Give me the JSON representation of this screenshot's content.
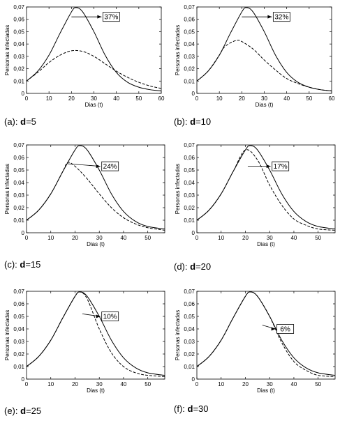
{
  "chart_data": [
    {
      "type": "line",
      "panel": "a",
      "caption_prefix": "(a): ",
      "caption_param": "d",
      "caption_value": "=5",
      "xlabel": "Dias (t)",
      "ylabel": "Personas infectadas",
      "xlim": [
        0,
        60
      ],
      "ylim": [
        0,
        0.07
      ],
      "xticks": [
        "0",
        "10",
        "20",
        "30",
        "40",
        "50",
        "60"
      ],
      "yticks": [
        "0",
        "0,01",
        "0,02",
        "0,03",
        "0,04",
        "0,05",
        "0,06",
        "0,07"
      ],
      "annotation": "37%",
      "series": [
        {
          "style": "solid",
          "x": [
            0,
            5,
            10,
            15,
            20,
            22,
            25,
            30,
            35,
            40,
            45,
            50,
            55,
            60
          ],
          "y": [
            0.01,
            0.018,
            0.031,
            0.049,
            0.066,
            0.0695,
            0.066,
            0.05,
            0.031,
            0.017,
            0.009,
            0.005,
            0.003,
            0.002
          ]
        },
        {
          "style": "dashed",
          "x": [
            0,
            5,
            10,
            15,
            20,
            25,
            30,
            35,
            40,
            45,
            50,
            55,
            60
          ],
          "y": [
            0.01,
            0.017,
            0.025,
            0.031,
            0.0345,
            0.034,
            0.03,
            0.024,
            0.018,
            0.013,
            0.009,
            0.006,
            0.004
          ]
        }
      ]
    },
    {
      "type": "line",
      "panel": "b",
      "caption_prefix": "(b): ",
      "caption_param": "d",
      "caption_value": "=10",
      "xlabel": "Dias (t)",
      "ylabel": "Personas infectadas",
      "xlim": [
        0,
        60
      ],
      "ylim": [
        0,
        0.07
      ],
      "xticks": [
        "0",
        "10",
        "20",
        "30",
        "40",
        "50",
        "60"
      ],
      "yticks": [
        "0",
        "0,01",
        "0,02",
        "0,03",
        "0,04",
        "0,05",
        "0,06",
        "0,07"
      ],
      "annotation": "32%",
      "series": [
        {
          "style": "solid",
          "x": [
            0,
            5,
            10,
            15,
            20,
            22,
            25,
            30,
            35,
            40,
            45,
            50,
            55,
            60
          ],
          "y": [
            0.01,
            0.018,
            0.031,
            0.049,
            0.066,
            0.0695,
            0.066,
            0.05,
            0.031,
            0.017,
            0.009,
            0.005,
            0.003,
            0.002
          ]
        },
        {
          "style": "dashed",
          "x": [
            0,
            5,
            10,
            12,
            15,
            18,
            20,
            25,
            30,
            35,
            40,
            45,
            50,
            55,
            60
          ],
          "y": [
            0.01,
            0.018,
            0.031,
            0.037,
            0.041,
            0.043,
            0.042,
            0.036,
            0.027,
            0.019,
            0.012,
            0.008,
            0.005,
            0.003,
            0.002
          ]
        }
      ]
    },
    {
      "type": "line",
      "panel": "c",
      "caption_prefix": "(c): ",
      "caption_param": "d",
      "caption_value": "=15",
      "xlabel": "Dias (t)",
      "ylabel": "Personas infectadas",
      "xlim": [
        0,
        57
      ],
      "ylim": [
        0,
        0.07
      ],
      "xticks": [
        "0",
        "10",
        "20",
        "30",
        "40",
        "50"
      ],
      "yticks": [
        "0",
        "0,01",
        "0,02",
        "0,03",
        "0,04",
        "0,05",
        "0,06",
        "0,07"
      ],
      "annotation": "24%",
      "series": [
        {
          "style": "solid",
          "x": [
            0,
            5,
            10,
            15,
            20,
            22,
            25,
            30,
            35,
            40,
            45,
            50,
            57
          ],
          "y": [
            0.01,
            0.018,
            0.031,
            0.049,
            0.066,
            0.0695,
            0.066,
            0.05,
            0.031,
            0.017,
            0.009,
            0.005,
            0.003
          ]
        },
        {
          "style": "dashed",
          "x": [
            0,
            5,
            10,
            15,
            17,
            20,
            25,
            30,
            35,
            40,
            45,
            50,
            57
          ],
          "y": [
            0.01,
            0.018,
            0.031,
            0.049,
            0.056,
            0.053,
            0.043,
            0.031,
            0.02,
            0.012,
            0.007,
            0.004,
            0.002
          ]
        }
      ]
    },
    {
      "type": "line",
      "panel": "d",
      "caption_prefix": "(d): ",
      "caption_param": "d",
      "caption_value": "=20",
      "xlabel": "Dias (t)",
      "ylabel": "Personas infectadas",
      "xlim": [
        0,
        57
      ],
      "ylim": [
        0,
        0.07
      ],
      "xticks": [
        "0",
        "10",
        "20",
        "30",
        "40",
        "50"
      ],
      "yticks": [
        "0",
        "0,01",
        "0,02",
        "0,03",
        "0,04",
        "0,05",
        "0,06",
        "0,07"
      ],
      "annotation": "17%",
      "series": [
        {
          "style": "solid",
          "x": [
            0,
            5,
            10,
            15,
            20,
            22,
            25,
            30,
            35,
            40,
            45,
            50,
            57
          ],
          "y": [
            0.01,
            0.018,
            0.031,
            0.049,
            0.066,
            0.0695,
            0.066,
            0.05,
            0.031,
            0.017,
            0.009,
            0.005,
            0.003
          ]
        },
        {
          "style": "dashed",
          "x": [
            0,
            5,
            10,
            15,
            20,
            25,
            30,
            35,
            40,
            45,
            50,
            57
          ],
          "y": [
            0.01,
            0.018,
            0.031,
            0.049,
            0.066,
            0.058,
            0.038,
            0.022,
            0.011,
            0.006,
            0.003,
            0.002
          ]
        }
      ]
    },
    {
      "type": "line",
      "panel": "e",
      "caption_prefix": "(e): ",
      "caption_param": "d",
      "caption_value": "=25",
      "xlabel": "Dias (t)",
      "ylabel": "Personas infectadas",
      "xlim": [
        0,
        57
      ],
      "ylim": [
        0,
        0.07
      ],
      "xticks": [
        "0",
        "10",
        "20",
        "30",
        "40",
        "50"
      ],
      "yticks": [
        "0",
        "0,01",
        "0,02",
        "0,03",
        "0,04",
        "0,05",
        "0,06",
        "0,07"
      ],
      "annotation": "10%",
      "series": [
        {
          "style": "solid",
          "x": [
            0,
            5,
            10,
            15,
            20,
            22,
            25,
            30,
            35,
            40,
            45,
            50,
            57
          ],
          "y": [
            0.01,
            0.018,
            0.031,
            0.049,
            0.066,
            0.0695,
            0.066,
            0.05,
            0.031,
            0.017,
            0.009,
            0.005,
            0.003
          ]
        },
        {
          "style": "dashed",
          "x": [
            0,
            5,
            10,
            15,
            20,
            22,
            25,
            30,
            35,
            40,
            45,
            50,
            57
          ],
          "y": [
            0.01,
            0.018,
            0.031,
            0.049,
            0.066,
            0.0695,
            0.064,
            0.04,
            0.021,
            0.01,
            0.005,
            0.003,
            0.002
          ]
        }
      ]
    },
    {
      "type": "line",
      "panel": "f",
      "caption_prefix": "(f): ",
      "caption_param": "d",
      "caption_value": "=30",
      "xlabel": "Dias (t)",
      "ylabel": "Personas infectadas",
      "xlim": [
        0,
        57
      ],
      "ylim": [
        0,
        0.07
      ],
      "xticks": [
        "0",
        "10",
        "20",
        "30",
        "40",
        "50"
      ],
      "yticks": [
        "0",
        "0,01",
        "0,02",
        "0,03",
        "0,04",
        "0,05",
        "0,06",
        "0,07"
      ],
      "annotation": "6%",
      "series": [
        {
          "style": "solid",
          "x": [
            0,
            5,
            10,
            15,
            20,
            22,
            25,
            30,
            35,
            40,
            45,
            50,
            57
          ],
          "y": [
            0.01,
            0.018,
            0.031,
            0.049,
            0.066,
            0.0695,
            0.066,
            0.05,
            0.031,
            0.017,
            0.009,
            0.005,
            0.003
          ]
        },
        {
          "style": "dashed",
          "x": [
            0,
            5,
            10,
            15,
            20,
            22,
            25,
            30,
            35,
            40,
            45,
            50,
            57
          ],
          "y": [
            0.01,
            0.018,
            0.031,
            0.049,
            0.066,
            0.0695,
            0.066,
            0.05,
            0.029,
            0.014,
            0.007,
            0.003,
            0.002
          ]
        }
      ]
    }
  ]
}
